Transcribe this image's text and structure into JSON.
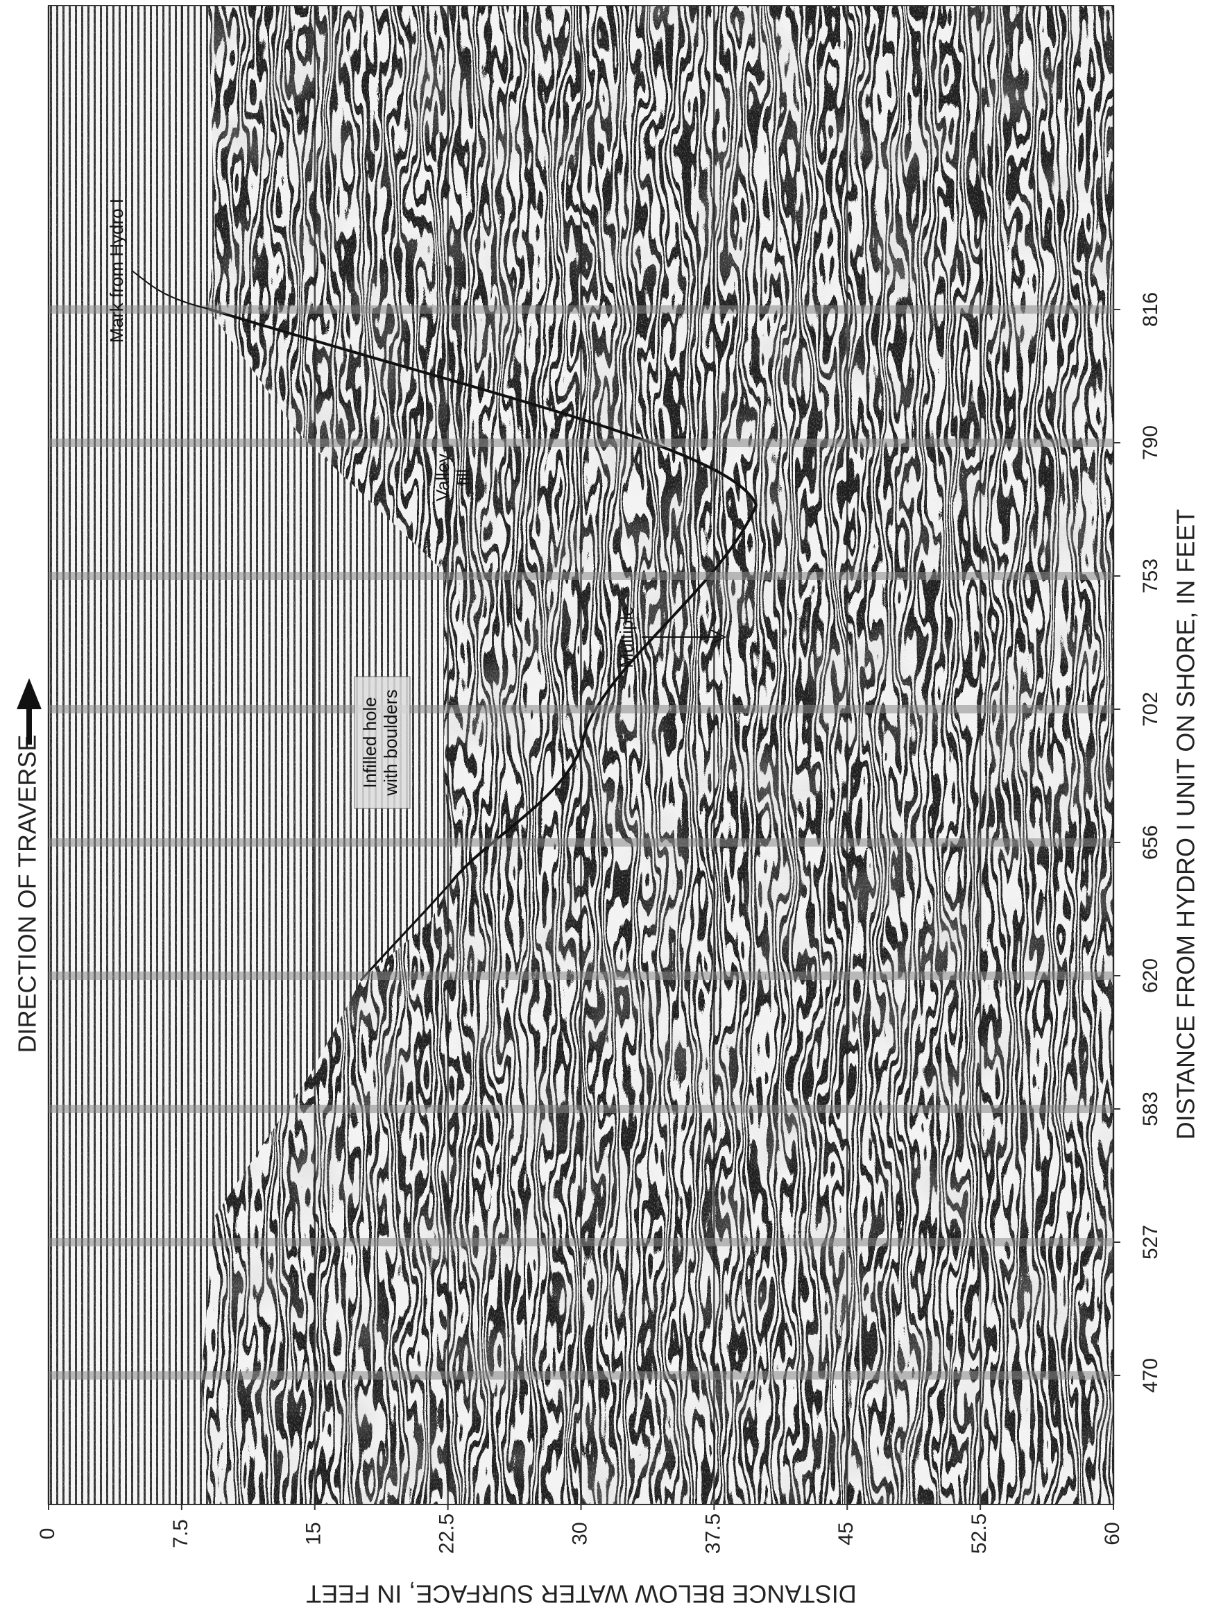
{
  "chart_data": {
    "type": "seismic-profile",
    "direction_label": "DIRECTION OF TRAVERSE",
    "x_label": "DISTANCE FROM HYDRO I UNIT ON SHORE, IN FEET",
    "y_label": "DISTANCE BELOW WATER SURFACE, IN FEET",
    "categories": [
      "470",
      "527",
      "583",
      "620",
      "656",
      "702",
      "753",
      "790",
      "816"
    ],
    "ylim": [
      0,
      60
    ],
    "yticks": [
      0,
      7.5,
      15,
      22.5,
      30,
      37.5,
      45,
      52.5,
      60
    ],
    "grid": true,
    "annotations": [
      [
        "Mark from Hydro I"
      ],
      [
        "Valley",
        "fill"
      ],
      [
        "Infilled hole",
        "with boulders"
      ],
      [
        "Multiple"
      ]
    ]
  }
}
